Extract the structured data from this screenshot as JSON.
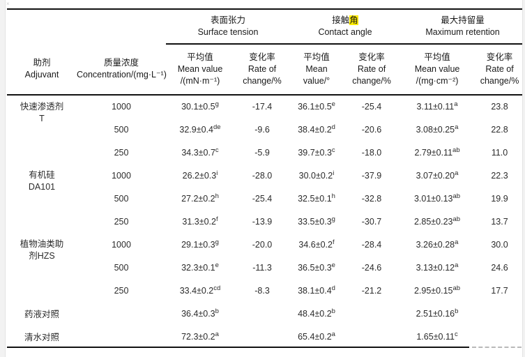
{
  "page": {
    "background": "#ffffff",
    "rule_color": "#111111",
    "highlight_color": "#ffec00",
    "margin_color": "#f2f2f2"
  },
  "header": {
    "adjuvant": "助剂\nAdjuvant",
    "concentration": "质量浓度\nConcentration/(mg·L⁻¹)",
    "groups": [
      {
        "zh": "表面张力",
        "en": "Surface tension"
      },
      {
        "zh_prefix": "接触",
        "zh_highlight": "角",
        "en": "Contact angle"
      },
      {
        "zh": "最大持留量",
        "en": "Maximum retention"
      }
    ],
    "subcols": [
      "平均值\nMean value\n/(mN·m⁻¹)",
      "变化率\nRate of\nchange/%",
      "平均值\nMean\nvalue/°",
      "变化率\nRate of\nchange/%",
      "平均值\nMean value\n/(mg·cm⁻²)",
      "变化率\nRate of\nchange/%"
    ]
  },
  "chart_data": {
    "type": "table",
    "columns": [
      "助剂 Adjuvant",
      "质量浓度 Concentration/(mg·L⁻¹)",
      "表面张力平均值/(mN·m⁻¹)",
      "表面张力变化率/%",
      "接触角平均值/°",
      "接触角变化率/%",
      "最大持留量平均值/(mg·cm⁻²)",
      "最大持留量变化率/%"
    ],
    "rows": [
      [
        "快速渗透剂T",
        "1000",
        "30.1±0.5 g",
        "-17.4",
        "36.1±0.5 e",
        "-25.4",
        "3.11±0.11 a",
        "23.8"
      ],
      [
        "快速渗透剂T",
        "500",
        "32.9±0.4 de",
        "-9.6",
        "38.4±0.2 d",
        "-20.6",
        "3.08±0.25 a",
        "22.8"
      ],
      [
        "快速渗透剂T",
        "250",
        "34.3±0.7 c",
        "-5.9",
        "39.7±0.3 c",
        "-18.0",
        "2.79±0.11 ab",
        "11.0"
      ],
      [
        "有机硅DA101",
        "1000",
        "26.2±0.3 i",
        "-28.0",
        "30.0±0.2 i",
        "-37.9",
        "3.07±0.20 a",
        "22.3"
      ],
      [
        "有机硅DA101",
        "500",
        "27.2±0.2 h",
        "-25.4",
        "32.5±0.1 h",
        "-32.8",
        "3.01±0.13 ab",
        "19.9"
      ],
      [
        "有机硅DA101",
        "250",
        "31.3±0.2 f",
        "-13.9",
        "33.5±0.3 g",
        "-30.7",
        "2.85±0.23 ab",
        "13.7"
      ],
      [
        "植物油类助剂HZS",
        "1000",
        "29.1±0.3 g",
        "-20.0",
        "34.6±0.2 f",
        "-28.4",
        "3.26±0.28 a",
        "30.0"
      ],
      [
        "植物油类助剂HZS",
        "500",
        "32.3±0.1 e",
        "-11.3",
        "36.5±0.3 e",
        "-24.6",
        "3.13±0.12 a",
        "24.6"
      ],
      [
        "植物油类助剂HZS",
        "250",
        "33.4±0.2 cd",
        "-8.3",
        "38.1±0.4 d",
        "-21.2",
        "2.95±0.15 ab",
        "17.7"
      ],
      [
        "药液对照",
        "",
        "36.4±0.3 b",
        "",
        "48.4±0.2 b",
        "",
        "2.51±0.16 b",
        ""
      ],
      [
        "清水对照",
        "",
        "72.3±0.2 a",
        "",
        "65.4±0.2 a",
        "",
        "1.65±0.11 c",
        ""
      ]
    ]
  },
  "table": {
    "groups": [
      {
        "adjuvant": "快速渗透剂\nT",
        "rows": [
          {
            "conc": "1000",
            "st": "30.1±0.5",
            "st_sup": "g",
            "st_rate": "-17.4",
            "ca": "36.1±0.5",
            "ca_sup": "e",
            "ca_rate": "-25.4",
            "ret": "3.11±0.11",
            "ret_sup": "a",
            "ret_rate": "23.8"
          },
          {
            "conc": "500",
            "st": "32.9±0.4",
            "st_sup": "de",
            "st_rate": "-9.6",
            "ca": "38.4±0.2",
            "ca_sup": "d",
            "ca_rate": "-20.6",
            "ret": "3.08±0.25",
            "ret_sup": "a",
            "ret_rate": "22.8"
          },
          {
            "conc": "250",
            "st": "34.3±0.7",
            "st_sup": "c",
            "st_rate": "-5.9",
            "ca": "39.7±0.3",
            "ca_sup": "c",
            "ca_rate": "-18.0",
            "ret": "2.79±0.11",
            "ret_sup": "ab",
            "ret_rate": "11.0"
          }
        ]
      },
      {
        "adjuvant": "有机硅\nDA101",
        "rows": [
          {
            "conc": "1000",
            "st": "26.2±0.3",
            "st_sup": "i",
            "st_rate": "-28.0",
            "ca": "30.0±0.2",
            "ca_sup": "i",
            "ca_rate": "-37.9",
            "ret": "3.07±0.20",
            "ret_sup": "a",
            "ret_rate": "22.3"
          },
          {
            "conc": "500",
            "st": "27.2±0.2",
            "st_sup": "h",
            "st_rate": "-25.4",
            "ca": "32.5±0.1",
            "ca_sup": "h",
            "ca_rate": "-32.8",
            "ret": "3.01±0.13",
            "ret_sup": "ab",
            "ret_rate": "19.9"
          },
          {
            "conc": "250",
            "st": "31.3±0.2",
            "st_sup": "f",
            "st_rate": "-13.9",
            "ca": "33.5±0.3",
            "ca_sup": "g",
            "ca_rate": "-30.7",
            "ret": "2.85±0.23",
            "ret_sup": "ab",
            "ret_rate": "13.7"
          }
        ]
      },
      {
        "adjuvant": "植物油类助\n剂HZS",
        "rows": [
          {
            "conc": "1000",
            "st": "29.1±0.3",
            "st_sup": "g",
            "st_rate": "-20.0",
            "ca": "34.6±0.2",
            "ca_sup": "f",
            "ca_rate": "-28.4",
            "ret": "3.26±0.28",
            "ret_sup": "a",
            "ret_rate": "30.0"
          },
          {
            "conc": "500",
            "st": "32.3±0.1",
            "st_sup": "e",
            "st_rate": "-11.3",
            "ca": "36.5±0.3",
            "ca_sup": "e",
            "ca_rate": "-24.6",
            "ret": "3.13±0.12",
            "ret_sup": "a",
            "ret_rate": "24.6"
          },
          {
            "conc": "250",
            "st": "33.4±0.2",
            "st_sup": "cd",
            "st_rate": "-8.3",
            "ca": "38.1±0.4",
            "ca_sup": "d",
            "ca_rate": "-21.2",
            "ret": "2.95±0.15",
            "ret_sup": "ab",
            "ret_rate": "17.7"
          }
        ]
      }
    ],
    "controls": [
      {
        "label": "药液对照",
        "st": "36.4±0.3",
        "st_sup": "b",
        "ca": "48.4±0.2",
        "ca_sup": "b",
        "ret": "2.51±0.16",
        "ret_sup": "b"
      },
      {
        "label": "清水对照",
        "st": "72.3±0.2",
        "st_sup": "a",
        "ca": "65.4±0.2",
        "ca_sup": "a",
        "ret": "1.65±0.11",
        "ret_sup": "c"
      }
    ]
  }
}
